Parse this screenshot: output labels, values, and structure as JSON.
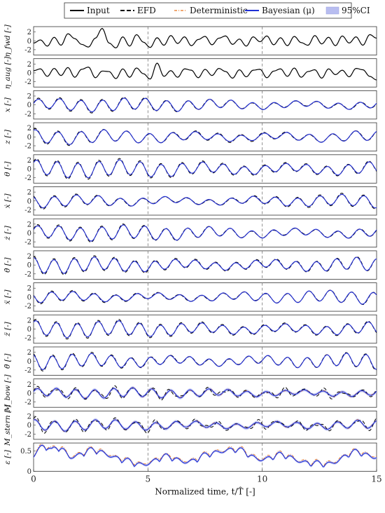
{
  "chart_data": {
    "type": "line",
    "xlabel": "Normalized time, t/T̂ [-]",
    "xlim": [
      0,
      15
    ],
    "x_ticks": [
      "0",
      "5",
      "10",
      "15"
    ],
    "vertical_markers": [
      5,
      10
    ],
    "legend": {
      "placement": "top",
      "entries": [
        {
          "name": "Input",
          "color": "#000000",
          "style": "solid"
        },
        {
          "name": "EFD",
          "color": "#000000",
          "style": "dashed"
        },
        {
          "name": "Deterministic",
          "color": "#e8741c",
          "style": "dash-dot"
        },
        {
          "name": "Bayesian (μ)",
          "color": "#1f2fd6",
          "style": "solid"
        },
        {
          "name": "95%CI",
          "color": "#b8bdf0",
          "style": "patch"
        }
      ]
    },
    "panels": [
      {
        "ylabel": "η_fwd [-]",
        "yticks": [
          "2",
          "0",
          "-2"
        ],
        "ylim": [
          -3.2,
          3.2
        ],
        "type": "input",
        "series": [
          {
            "name": "Input",
            "x": [
              0,
              0.3,
              0.6,
              0.9,
              1.2,
              1.5,
              1.8,
              2.1,
              2.4,
              2.7,
              3.0,
              3.3,
              3.6,
              3.9,
              4.2,
              4.5,
              4.8,
              5.1,
              5.4,
              5.7,
              6.0,
              6.3,
              6.6,
              6.9,
              7.2,
              7.5,
              7.8,
              8.1,
              8.4,
              8.7,
              9.0,
              9.3,
              9.6,
              9.9,
              10.2,
              10.5,
              10.8,
              11.1,
              11.4,
              11.7,
              12.0,
              12.3,
              12.6,
              12.9,
              13.2,
              13.5,
              13.8,
              14.1,
              14.4,
              14.7,
              15.0
            ],
            "y": [
              -0.5,
              0.2,
              -1.2,
              0.8,
              -1.0,
              1.6,
              0.5,
              -0.8,
              -1.4,
              0.6,
              2.8,
              -0.5,
              -1.6,
              0.9,
              -1.2,
              1.4,
              -0.3,
              -1.5,
              0.7,
              -1.0,
              1.2,
              -0.6,
              0.9,
              -1.1,
              0.3,
              1.0,
              -0.9,
              0.6,
              1.1,
              -0.8,
              0.4,
              -1.2,
              0.9,
              -0.2,
              1.1,
              -0.9,
              0.7,
              -1.1,
              1.0,
              -0.4,
              -1.0,
              1.2,
              -0.7,
              0.8,
              -1.1,
              1.1,
              -0.5,
              0.9,
              -1.0,
              1.4,
              0.6
            ]
          }
        ]
      },
      {
        "ylabel": "η_aug [-]",
        "yticks": [
          "2",
          "0",
          "-2"
        ],
        "ylim": [
          -3.2,
          3.2
        ],
        "type": "input",
        "series": [
          {
            "name": "Input",
            "x": [
              0,
              0.3,
              0.6,
              0.9,
              1.2,
              1.5,
              1.8,
              2.1,
              2.4,
              2.7,
              3.0,
              3.3,
              3.6,
              3.9,
              4.2,
              4.5,
              4.8,
              5.1,
              5.4,
              5.7,
              6.0,
              6.3,
              6.6,
              6.9,
              7.2,
              7.5,
              7.8,
              8.1,
              8.4,
              8.7,
              9.0,
              9.3,
              9.6,
              9.9,
              10.2,
              10.5,
              10.8,
              11.1,
              11.4,
              11.7,
              12.0,
              12.3,
              12.6,
              12.9,
              13.2,
              13.5,
              13.8,
              14.1,
              14.4,
              14.7,
              15.0
            ],
            "y": [
              0.5,
              0.9,
              -0.8,
              1.0,
              -0.6,
              1.2,
              -1.0,
              0.8,
              1.3,
              -1.1,
              0.4,
              0.3,
              -1.3,
              0.9,
              -1.0,
              1.1,
              -0.2,
              -1.4,
              2.2,
              -0.8,
              0.5,
              -1.0,
              0.9,
              0.6,
              -1.1,
              0.8,
              -0.6,
              1.0,
              0.3,
              -1.2,
              0.7,
              -0.9,
              0.6,
              0.8,
              -1.1,
              0.4,
              0.9,
              -0.8,
              1.1,
              -1.0,
              0.3,
              0.7,
              -1.2,
              0.9,
              -0.4,
              0.6,
              -0.9,
              1.0,
              0.7,
              -0.8,
              -1.6
            ]
          }
        ]
      },
      {
        "ylabel": "x [-]",
        "yticks": [
          "2",
          "0",
          "-2"
        ],
        "ylim": [
          -3.2,
          3.2
        ],
        "type": "response",
        "amp": 1.3,
        "freq": 3.2,
        "phase": 0.2
      },
      {
        "ylabel": "z [-]",
        "yticks": [
          "2",
          "0",
          "-2"
        ],
        "ylim": [
          -3.2,
          3.2
        ],
        "type": "response",
        "amp": 1.4,
        "freq": 3.0,
        "phase": 1.1
      },
      {
        "ylabel": "θ [-]",
        "yticks": [
          "2",
          "0",
          "-2"
        ],
        "ylim": [
          -3.2,
          3.2
        ],
        "type": "response",
        "amp": 1.7,
        "freq": 3.3,
        "phase": 0.7
      },
      {
        "ylabel": "ẋ [-]",
        "yticks": [
          "2",
          "0",
          "-2"
        ],
        "ylim": [
          -3.2,
          3.2
        ],
        "type": "response",
        "amp": 1.3,
        "freq": 3.1,
        "phase": 2.0
      },
      {
        "ylabel": "ż [-]",
        "yticks": [
          "2",
          "0",
          "-2"
        ],
        "ylim": [
          -3.2,
          3.2
        ],
        "type": "response",
        "amp": 1.5,
        "freq": 3.2,
        "phase": 0.4
      },
      {
        "ylabel": "θ̇ [-]",
        "yticks": [
          "2",
          "0",
          "-2"
        ],
        "ylim": [
          -3.2,
          3.2
        ],
        "type": "response",
        "amp": 1.6,
        "freq": 3.4,
        "phase": 1.5
      },
      {
        "ylabel": "ẍ [-]",
        "yticks": [
          "2",
          "0",
          "-2"
        ],
        "ylim": [
          -3.2,
          3.2
        ],
        "type": "response",
        "amp": 1.3,
        "freq": 3.2,
        "phase": 2.6
      },
      {
        "ylabel": "z̈ [-]",
        "yticks": [
          "2",
          "0",
          "-2"
        ],
        "ylim": [
          -3.2,
          3.2
        ],
        "type": "response",
        "amp": 1.6,
        "freq": 3.3,
        "phase": 0.9
      },
      {
        "ylabel": "θ̈ [-]",
        "yticks": [
          "2",
          "0",
          "-2"
        ],
        "ylim": [
          -3.2,
          3.2
        ],
        "type": "response",
        "amp": 1.6,
        "freq": 3.5,
        "phase": 1.8
      },
      {
        "ylabel": "M_bow [-]",
        "yticks": [
          "2",
          "0",
          "-2"
        ],
        "ylim": [
          -3.2,
          3.2
        ],
        "type": "load",
        "amp": 1.0,
        "freq": 3.6,
        "phase": 0.3
      },
      {
        "ylabel": "M_stern [-]",
        "yticks": [
          "2",
          "0",
          "-2"
        ],
        "ylim": [
          -3.2,
          3.2
        ],
        "type": "load",
        "amp": 1.1,
        "freq": 3.4,
        "phase": 1.2
      },
      {
        "ylabel": "ε [-]",
        "yticks": [
          "0.5",
          "0"
        ],
        "ylim": [
          0,
          0.7
        ],
        "type": "error"
      }
    ]
  }
}
